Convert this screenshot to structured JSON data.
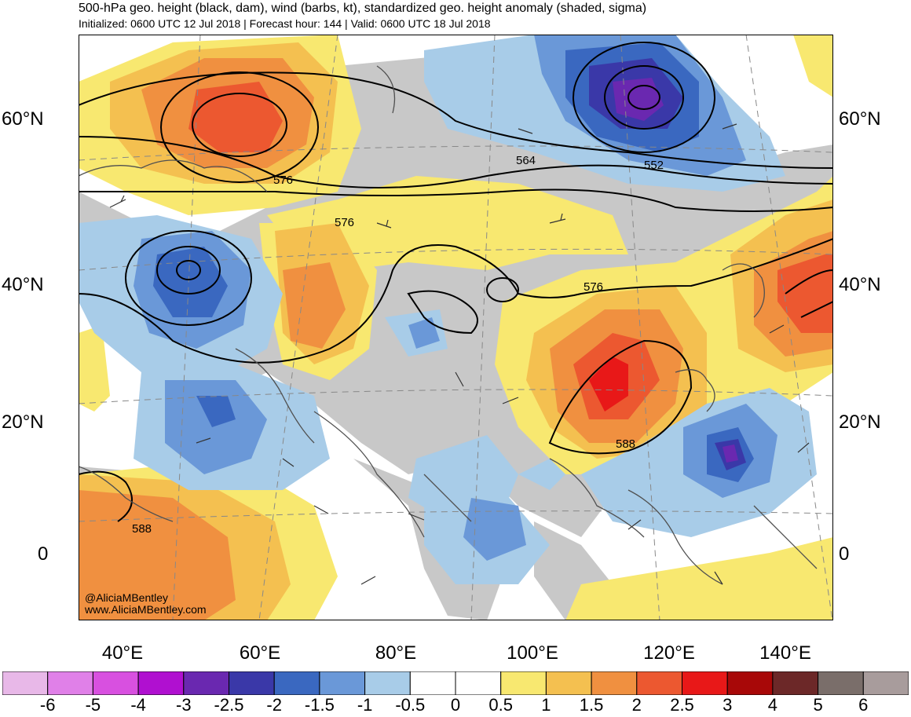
{
  "header": {
    "title": "500-hPa geo. height (black, dam), wind (barbs, kt), standardized geo. height anomaly (shaded, sigma)",
    "subtitle": "Initialized: 0600 UTC 12 Jul 2018 | Forecast hour: 144 | Valid: 0600 UTC 18 Jul 2018"
  },
  "axes": {
    "lat_left": [
      "60°N",
      "40°N",
      "20°N",
      "0"
    ],
    "lat_right": [
      "60°N",
      "40°N",
      "20°N",
      "0"
    ],
    "lon": [
      "40°E",
      "60°E",
      "80°E",
      "100°E",
      "120°E",
      "140°E"
    ]
  },
  "contour_labels": [
    "576",
    "576",
    "576",
    "564",
    "552",
    "588",
    "588"
  ],
  "credit": {
    "handle": "@AliciaMBentley",
    "site": "www.AliciaMBentley.com"
  },
  "colorbar": {
    "labels": [
      "-6",
      "-5",
      "-4",
      "-3",
      "-2.5",
      "-2",
      "-1.5",
      "-1",
      "-0.5",
      "0",
      "0.5",
      "1",
      "1.5",
      "2",
      "2.5",
      "3",
      "4",
      "5",
      "6"
    ],
    "colors": [
      "#e8b8e8",
      "#e080e8",
      "#d850e0",
      "#b010d0",
      "#6a28b0",
      "#3a38a8",
      "#3a68c0",
      "#6a98d8",
      "#a8cce8",
      "#ffffff",
      "#ffffff",
      "#f8e870",
      "#f4c050",
      "#f09040",
      "#ec5830",
      "#e81818",
      "#a80808",
      "#6c2828",
      "#7a6e6a",
      "#a89c9c"
    ]
  },
  "palette": {
    "land_gray": "#c8c8c8",
    "ocean": "#ffffff"
  }
}
